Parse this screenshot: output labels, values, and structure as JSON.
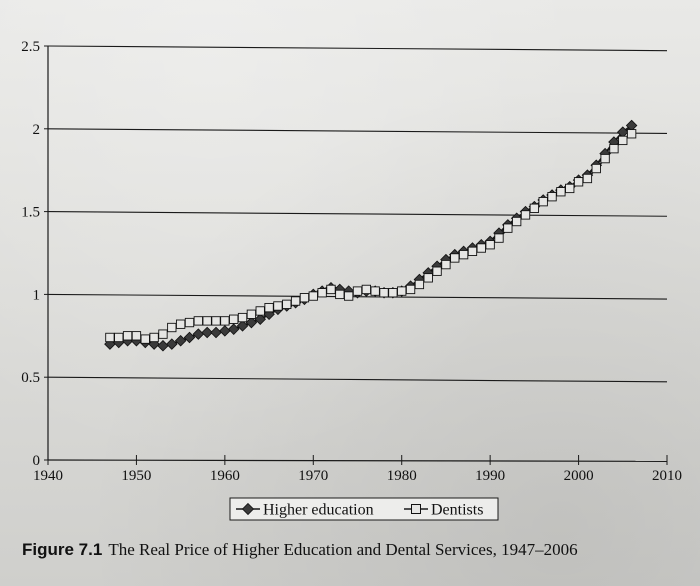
{
  "figure": {
    "number": "Figure 7.1",
    "caption": "The Real Price of Higher Education and Dental Services, 1947–2006"
  },
  "chart_data": {
    "type": "line",
    "title": "",
    "xlabel": "",
    "ylabel": "",
    "xlim": [
      1940,
      2010
    ],
    "ylim": [
      0,
      2.5
    ],
    "xticks": [
      1940,
      1950,
      1960,
      1970,
      1980,
      1990,
      2000,
      2010
    ],
    "yticks": [
      0,
      0.5,
      1,
      1.5,
      2,
      2.5
    ],
    "ytick_labels": [
      "0",
      "0.5",
      "1",
      "1.5",
      "2",
      "2.5"
    ],
    "grid": "horizontal",
    "legend_position": "bottom-center",
    "colors": {
      "line": "#1a1a1a",
      "marker_fill_higher_education": "#3a3a3a",
      "marker_fill_dentists": "#e6e6e4"
    },
    "series": [
      {
        "name": "Higher education",
        "marker": "diamond",
        "x": [
          1947,
          1948,
          1949,
          1950,
          1951,
          1952,
          1953,
          1954,
          1955,
          1956,
          1957,
          1958,
          1959,
          1960,
          1961,
          1962,
          1963,
          1964,
          1965,
          1966,
          1967,
          1968,
          1969,
          1970,
          1971,
          1972,
          1973,
          1974,
          1975,
          1976,
          1977,
          1978,
          1979,
          1980,
          1981,
          1982,
          1983,
          1984,
          1985,
          1986,
          1987,
          1988,
          1989,
          1990,
          1991,
          1992,
          1993,
          1994,
          1995,
          1996,
          1997,
          1998,
          1999,
          2000,
          2001,
          2002,
          2003,
          2004,
          2005,
          2006
        ],
        "y": [
          0.7,
          0.71,
          0.72,
          0.72,
          0.71,
          0.7,
          0.69,
          0.7,
          0.72,
          0.74,
          0.76,
          0.77,
          0.77,
          0.78,
          0.79,
          0.81,
          0.83,
          0.85,
          0.88,
          0.91,
          0.93,
          0.95,
          0.97,
          1.0,
          1.02,
          1.04,
          1.03,
          1.02,
          1.01,
          1.02,
          1.02,
          1.01,
          1.01,
          1.02,
          1.05,
          1.09,
          1.13,
          1.17,
          1.21,
          1.24,
          1.26,
          1.28,
          1.3,
          1.32,
          1.37,
          1.42,
          1.46,
          1.5,
          1.53,
          1.57,
          1.6,
          1.63,
          1.65,
          1.69,
          1.72,
          1.78,
          1.85,
          1.92,
          1.98,
          2.02
        ]
      },
      {
        "name": "Dentists",
        "marker": "square",
        "x": [
          1947,
          1948,
          1949,
          1950,
          1951,
          1952,
          1953,
          1954,
          1955,
          1956,
          1957,
          1958,
          1959,
          1960,
          1961,
          1962,
          1963,
          1964,
          1965,
          1966,
          1967,
          1968,
          1969,
          1970,
          1971,
          1972,
          1973,
          1974,
          1975,
          1976,
          1977,
          1978,
          1979,
          1980,
          1981,
          1982,
          1983,
          1984,
          1985,
          1986,
          1987,
          1988,
          1989,
          1990,
          1991,
          1992,
          1993,
          1994,
          1995,
          1996,
          1997,
          1998,
          1999,
          2000,
          2001,
          2002,
          2003,
          2004,
          2005,
          2006
        ],
        "y": [
          0.74,
          0.74,
          0.75,
          0.75,
          0.73,
          0.74,
          0.76,
          0.8,
          0.82,
          0.83,
          0.84,
          0.84,
          0.84,
          0.84,
          0.85,
          0.86,
          0.88,
          0.9,
          0.92,
          0.93,
          0.94,
          0.96,
          0.98,
          0.99,
          1.01,
          1.03,
          1.0,
          0.99,
          1.02,
          1.03,
          1.02,
          1.01,
          1.01,
          1.02,
          1.03,
          1.06,
          1.1,
          1.14,
          1.18,
          1.22,
          1.24,
          1.26,
          1.28,
          1.3,
          1.34,
          1.4,
          1.44,
          1.48,
          1.52,
          1.56,
          1.59,
          1.62,
          1.64,
          1.68,
          1.7,
          1.76,
          1.82,
          1.88,
          1.93,
          1.97
        ]
      }
    ]
  }
}
